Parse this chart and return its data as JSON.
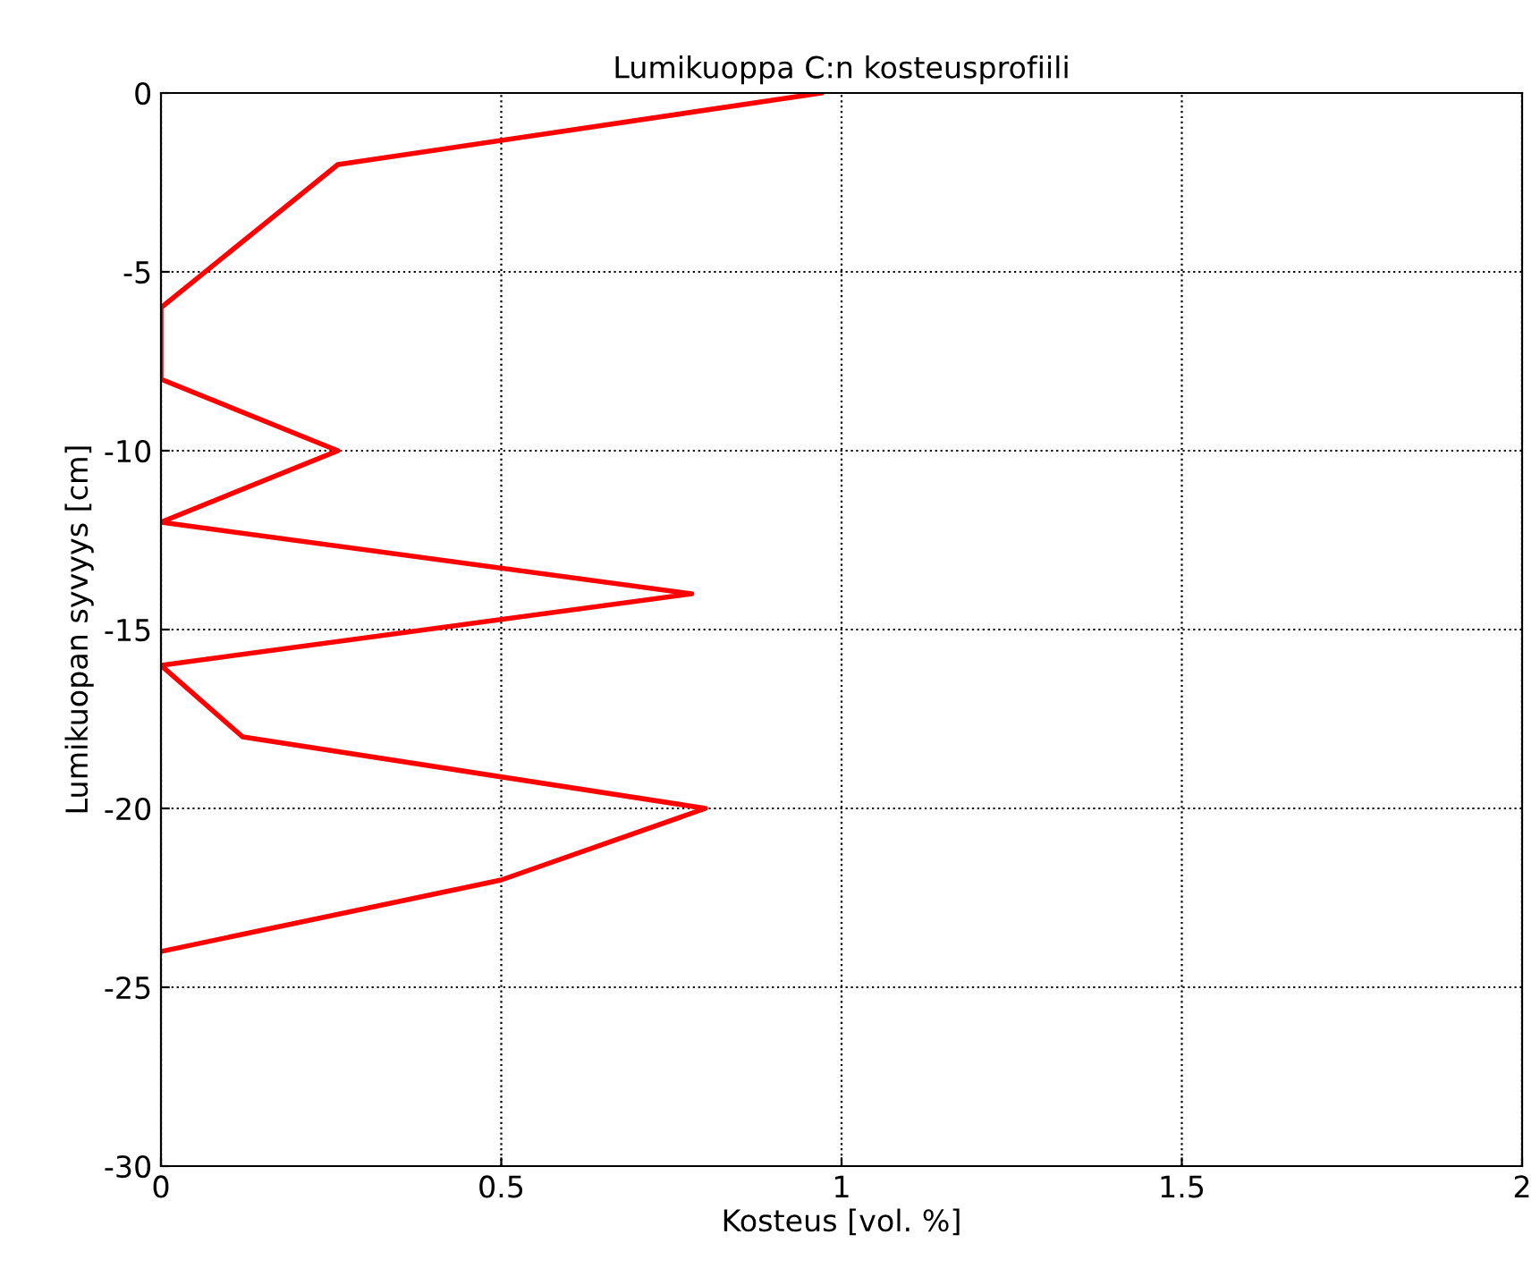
{
  "chart_data": {
    "type": "line",
    "title": "Lumikuoppa C:n kosteusprofiili",
    "xlabel": "Kosteus [vol. %]",
    "ylabel": "Lumikuopan syvyys [cm]",
    "series": [
      {
        "color": "#ff0000",
        "x": [
          0.97,
          0.26,
          0,
          0,
          0.26,
          0,
          0.78,
          0,
          0.12,
          0.8,
          0.5,
          0
        ],
        "values": [
          0,
          -2,
          -6,
          -8,
          -10,
          -12,
          -14,
          -16,
          -18,
          -20,
          -22,
          -24
        ]
      }
    ],
    "xlim": [
      0,
      2
    ],
    "xticks": [
      0,
      0.5,
      1,
      1.5,
      2
    ],
    "ylim": [
      -30,
      0
    ],
    "yticks": [
      -30,
      -25,
      -20,
      -15,
      -10,
      -5,
      0
    ],
    "grid": true,
    "marker": "none",
    "line_style": "solid"
  }
}
